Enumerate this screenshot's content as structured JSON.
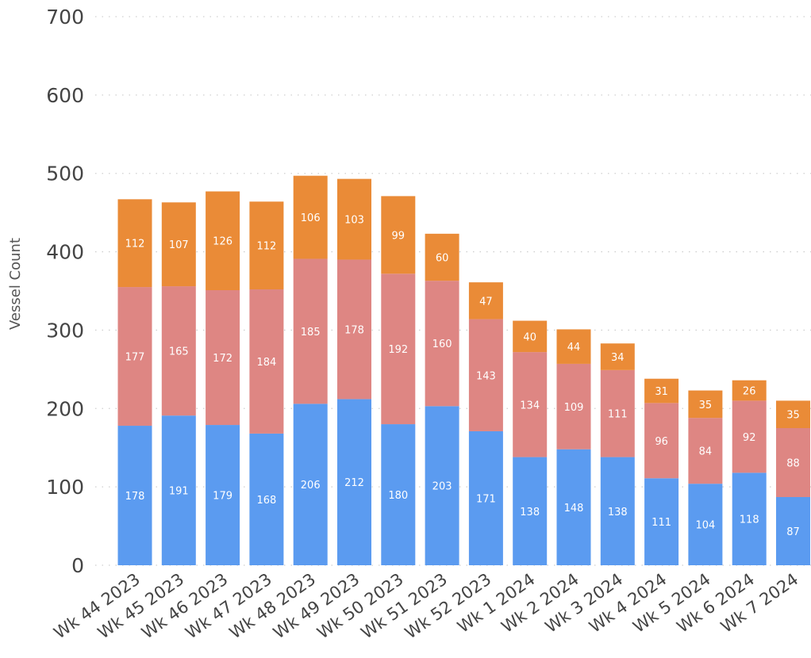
{
  "chart_data": {
    "type": "bar",
    "stacked": true,
    "title": "",
    "xlabel": "",
    "ylabel": "Vessel Count",
    "ylim": [
      0,
      700
    ],
    "yticks": [
      0,
      100,
      200,
      300,
      400,
      500,
      600,
      700
    ],
    "grid": true,
    "legend": "none",
    "categories": [
      "Wk 44 2023",
      "Wk 45 2023",
      "Wk 46 2023",
      "Wk 47 2023",
      "Wk 48 2023",
      "Wk 49 2023",
      "Wk 50 2023",
      "Wk 51 2023",
      "Wk 52 2023",
      "Wk 1 2024",
      "Wk 2 2024",
      "Wk 3 2024",
      "Wk 4 2024",
      "Wk 5 2024",
      "Wk 6 2024",
      "Wk 7 2024"
    ],
    "series": [
      {
        "color": "#5b9bf0",
        "values": [
          178,
          191,
          179,
          168,
          206,
          212,
          180,
          203,
          171,
          138,
          148,
          138,
          111,
          104,
          118,
          87
        ]
      },
      {
        "color": "#de8683",
        "values": [
          177,
          165,
          172,
          184,
          185,
          178,
          192,
          160,
          143,
          134,
          109,
          111,
          96,
          84,
          92,
          88
        ]
      },
      {
        "color": "#ea8b37",
        "values": [
          112,
          107,
          126,
          112,
          106,
          103,
          99,
          60,
          47,
          40,
          44,
          34,
          31,
          35,
          26,
          35
        ]
      }
    ]
  }
}
